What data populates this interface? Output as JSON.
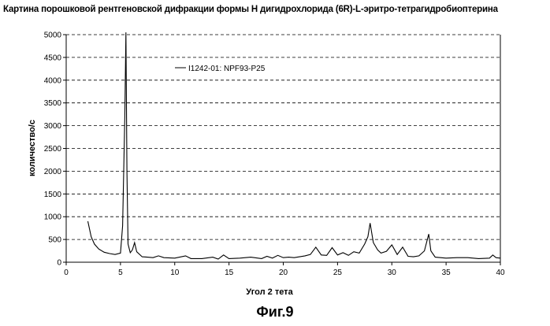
{
  "title": "Картина порошковой рентгеновской дифракции формы H дигидрохлорида (6R)-L-эритро-тетрагидробиоптерина",
  "figure_caption": "Фиг.9",
  "chart_data": {
    "type": "line",
    "title": "Картина порошковой рентгеновской дифракции формы H дигидрохлорида (6R)-L-эритро-тетрагидробиоптерина",
    "xlabel": "Угол 2 тета",
    "ylabel": "количество/с",
    "xlim": [
      0,
      40
    ],
    "ylim": [
      0,
      5000
    ],
    "xticks": [
      0,
      5,
      10,
      15,
      20,
      25,
      30,
      35,
      40
    ],
    "yticks": [
      0,
      500,
      1000,
      1500,
      2000,
      2500,
      3000,
      3500,
      4000,
      4500,
      5000
    ],
    "grid": "horizontal dashed",
    "legend_placement": "top-center",
    "series": [
      {
        "name": "I1242-01: NPF93-P25",
        "color": "#000000",
        "x": [
          2.0,
          2.3,
          2.6,
          3.0,
          3.5,
          4.0,
          4.5,
          5.0,
          5.2,
          5.4,
          5.5,
          5.6,
          5.7,
          5.9,
          6.1,
          6.3,
          6.5,
          7.0,
          7.5,
          8.0,
          8.5,
          9.0,
          10.0,
          11.0,
          11.5,
          12.5,
          13.5,
          14.0,
          14.5,
          15.0,
          16.0,
          17.0,
          18.0,
          18.5,
          19.0,
          19.5,
          20.0,
          20.5,
          21.0,
          21.5,
          22.0,
          22.5,
          23.0,
          23.5,
          24.0,
          24.5,
          25.0,
          25.5,
          26.0,
          26.5,
          27.0,
          27.5,
          27.8,
          28.0,
          28.3,
          28.7,
          29.0,
          29.5,
          30.0,
          30.5,
          31.0,
          31.5,
          32.0,
          32.5,
          33.0,
          33.4,
          33.6,
          34.0,
          35.0,
          36.0,
          37.0,
          38.0,
          39.0,
          39.3,
          39.6,
          40.0
        ],
        "values": [
          900,
          560,
          400,
          290,
          220,
          190,
          170,
          200,
          800,
          3200,
          5050,
          2000,
          400,
          210,
          270,
          430,
          230,
          120,
          110,
          100,
          140,
          100,
          90,
          140,
          80,
          80,
          110,
          70,
          160,
          80,
          90,
          110,
          80,
          130,
          90,
          150,
          100,
          110,
          100,
          120,
          140,
          170,
          330,
          160,
          150,
          320,
          160,
          210,
          150,
          230,
          200,
          400,
          560,
          860,
          430,
          270,
          200,
          240,
          380,
          170,
          330,
          130,
          120,
          140,
          250,
          620,
          250,
          110,
          90,
          100,
          100,
          80,
          90,
          160,
          100,
          90
        ]
      }
    ]
  }
}
